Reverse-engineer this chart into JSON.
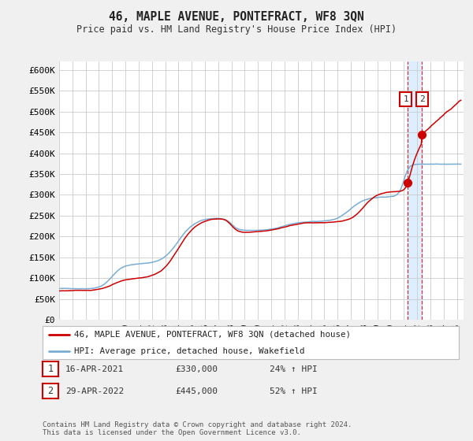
{
  "title": "46, MAPLE AVENUE, PONTEFRACT, WF8 3QN",
  "subtitle": "Price paid vs. HM Land Registry's House Price Index (HPI)",
  "ylabel_ticks": [
    "£0",
    "£50K",
    "£100K",
    "£150K",
    "£200K",
    "£250K",
    "£300K",
    "£350K",
    "£400K",
    "£450K",
    "£500K",
    "£550K",
    "£600K"
  ],
  "ytick_values": [
    0,
    50000,
    100000,
    150000,
    200000,
    250000,
    300000,
    350000,
    400000,
    450000,
    500000,
    550000,
    600000
  ],
  "x_start_year": 1995,
  "x_end_year": 2025,
  "hpi_line_color": "#7aadd4",
  "price_line_color": "#cc0000",
  "shade_color": "#ddeeff",
  "legend_label_price": "46, MAPLE AVENUE, PONTEFRACT, WF8 3QN (detached house)",
  "legend_label_hpi": "HPI: Average price, detached house, Wakefield",
  "annotation1_date": "16-APR-2021",
  "annotation1_price": "£330,000",
  "annotation1_hpi": "24% ↑ HPI",
  "annotation2_date": "29-APR-2022",
  "annotation2_price": "£445,000",
  "annotation2_hpi": "52% ↑ HPI",
  "footnote": "Contains HM Land Registry data © Crown copyright and database right 2024.\nThis data is licensed under the Open Government Licence v3.0.",
  "background_color": "#f0f0f0",
  "plot_background_color": "#ffffff"
}
